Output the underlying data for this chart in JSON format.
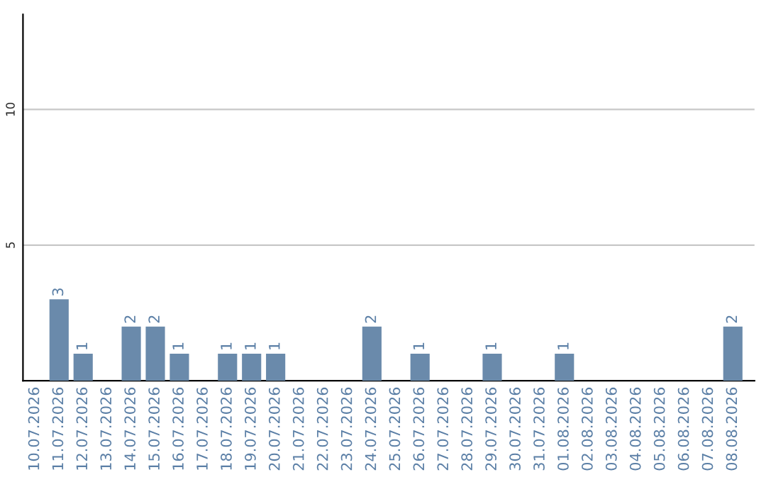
{
  "chart_data": {
    "type": "bar",
    "categories": [
      "10.07.2026",
      "11.07.2026",
      "12.07.2026",
      "13.07.2026",
      "14.07.2026",
      "15.07.2026",
      "16.07.2026",
      "17.07.2026",
      "18.07.2026",
      "19.07.2026",
      "20.07.2026",
      "21.07.2026",
      "22.07.2026",
      "23.07.2026",
      "24.07.2026",
      "25.07.2026",
      "26.07.2026",
      "27.07.2026",
      "28.07.2026",
      "29.07.2026",
      "30.07.2026",
      "31.07.2026",
      "01.08.2026",
      "02.08.2026",
      "03.08.2026",
      "04.08.2026",
      "05.08.2026",
      "06.08.2026",
      "07.08.2026",
      "08.08.2026"
    ],
    "values": [
      0,
      3,
      1,
      0,
      2,
      2,
      1,
      0,
      1,
      1,
      1,
      0,
      0,
      0,
      2,
      0,
      1,
      0,
      0,
      1,
      0,
      0,
      1,
      0,
      0,
      0,
      0,
      0,
      0,
      2
    ],
    "value_labels": [
      null,
      "3",
      "1",
      null,
      "2",
      "2",
      "1",
      null,
      "1",
      "1",
      "1",
      null,
      null,
      null,
      "2",
      null,
      "1",
      null,
      null,
      "1",
      null,
      null,
      "1",
      null,
      null,
      null,
      null,
      null,
      null,
      "2"
    ],
    "color": "#6a8aab",
    "ylim": [
      0,
      13.5
    ],
    "yticks": [
      5,
      10
    ],
    "grid": "y"
  }
}
